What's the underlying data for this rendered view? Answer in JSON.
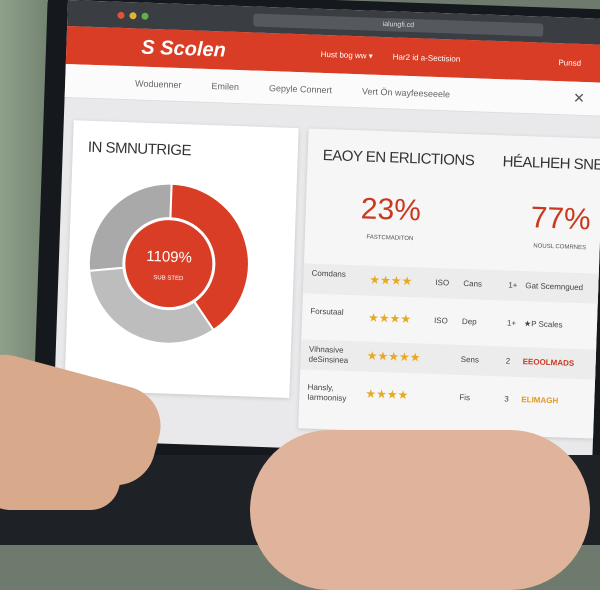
{
  "browser": {
    "url": "ialungfi.cd"
  },
  "header": {
    "logo": "S Scolen",
    "nav": [
      "Hust bog ww ▾",
      "Har2 id a-Sectision"
    ],
    "right": "Punsd"
  },
  "nav": {
    "items": [
      "Woduenner",
      "Emilen",
      "Gepyle Connert",
      "Vert Ön wayfeeseeele"
    ],
    "icon": "user-icon"
  },
  "left_card": {
    "title": "IN SMNUTRIGE",
    "donut_label": "1109%",
    "donut_sub": "SUB STED",
    "segments": [
      {
        "color": "#d93d25",
        "value": 40
      },
      {
        "color": "#bdbdbd",
        "value": 33
      },
      {
        "color": "#a9a9a9",
        "value": 27
      }
    ]
  },
  "right_card": {
    "title_left": "EAOY EN ERLICTIONS",
    "title_right": "HÉALHEH SNE",
    "stat_left": {
      "value": "23%",
      "label": "FASTCMADITON"
    },
    "stat_right": {
      "value": "77%",
      "label": "NOUSL COMRNES"
    },
    "rows": [
      {
        "label": "Comdans",
        "stars": "★★★★",
        "note": "ISO",
        "col": "Cans",
        "num": "1+",
        "right": "Gat Scemngued"
      },
      {
        "label": "Forsutaal",
        "stars": "★★★★",
        "note": "ISO",
        "col": "Dep",
        "num": "1+",
        "right": "★P Scales"
      },
      {
        "label": "Vihnasive deSinsinea",
        "stars": "★★★★★",
        "note": "",
        "col": "Sens",
        "num": "2",
        "right": "EEOOLMADS"
      },
      {
        "label": "Hansly, Iarmoonisy",
        "stars": "★★★★",
        "note": "",
        "col": "Fis",
        "num": "3",
        "right": "ELIMAGH"
      }
    ]
  },
  "colors": {
    "accent": "#d93d25",
    "stars": "#e8a922"
  }
}
